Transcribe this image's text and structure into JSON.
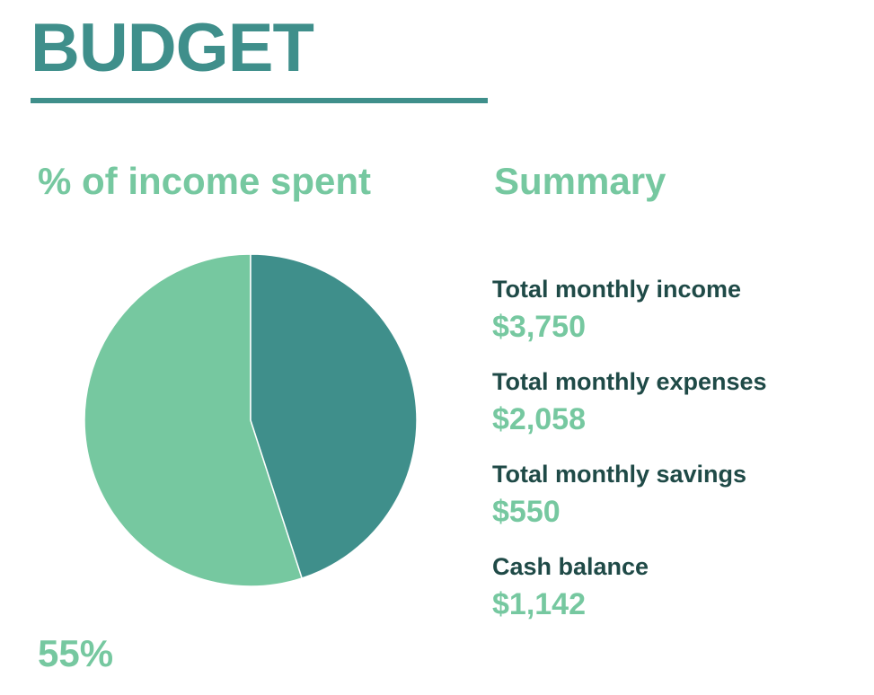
{
  "page": {
    "title": "BUDGET",
    "pie_heading": "% of income spent",
    "percent_label": "55%",
    "summary_heading": "Summary"
  },
  "summary": {
    "items": [
      {
        "label": "Total monthly income",
        "value": "$3,750"
      },
      {
        "label": "Total monthly expenses",
        "value": "$2,058"
      },
      {
        "label": "Total monthly savings",
        "value": "$550"
      },
      {
        "label": "Cash balance",
        "value": "$1,142"
      }
    ]
  },
  "chart_data": {
    "type": "pie",
    "slices": [
      {
        "value": 55,
        "color": "#76c8a0"
      },
      {
        "value": 45,
        "color": "#3f8f8b"
      }
    ]
  },
  "colors": {
    "accent_dark": "#3f8f8b",
    "accent_light": "#76c8a0",
    "label_text": "#1f4a47"
  }
}
